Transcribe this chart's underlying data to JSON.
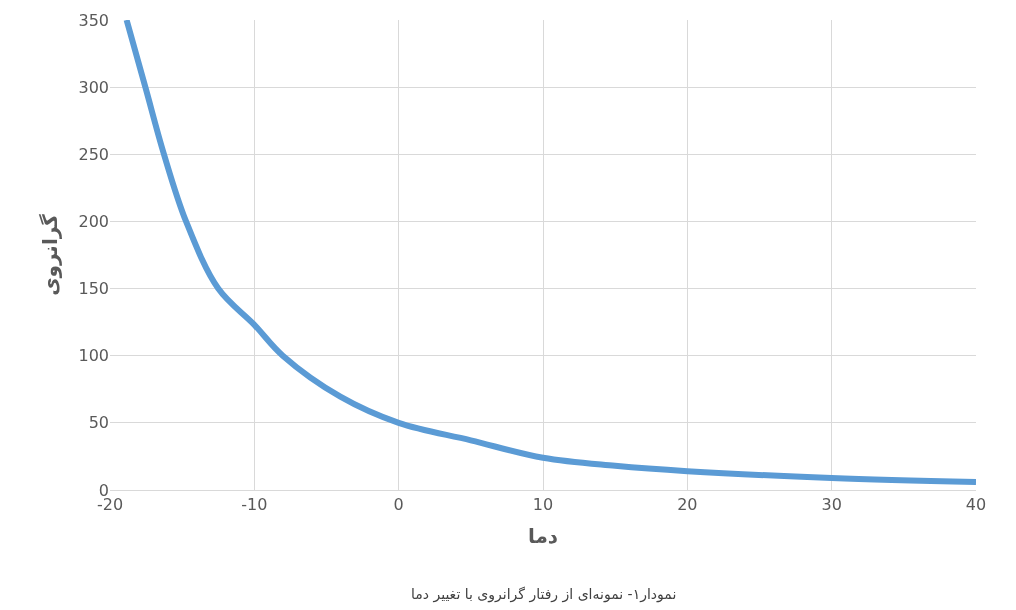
{
  "chart_data": {
    "type": "line",
    "xlabel": "دما",
    "ylabel": "گرانروی",
    "x": [
      -18.85,
      -17.55,
      -16.26,
      -14.73,
      -12.5,
      -10,
      -8.03,
      -4.04,
      0,
      5,
      10,
      15,
      20,
      30,
      40
    ],
    "series": [
      {
        "color": "#5b9bd5",
        "values": [
          350,
          300,
          250,
          200,
          150,
          123,
          100,
          69.5,
          50,
          37,
          24,
          18,
          14,
          9,
          6
        ]
      }
    ],
    "xlim": [
      -20,
      40
    ],
    "xticks": [
      -20,
      -10,
      0,
      10,
      20,
      30,
      40
    ],
    "ylim": [
      0,
      350
    ],
    "yticks": [
      0,
      50,
      100,
      150,
      200,
      250,
      300,
      350
    ],
    "grid": true,
    "marker": "none",
    "line_style": "solid",
    "annotations": [
      "نمودار۱- نمونه‌ای از رفتار گرانروی با تغییر دما"
    ]
  }
}
